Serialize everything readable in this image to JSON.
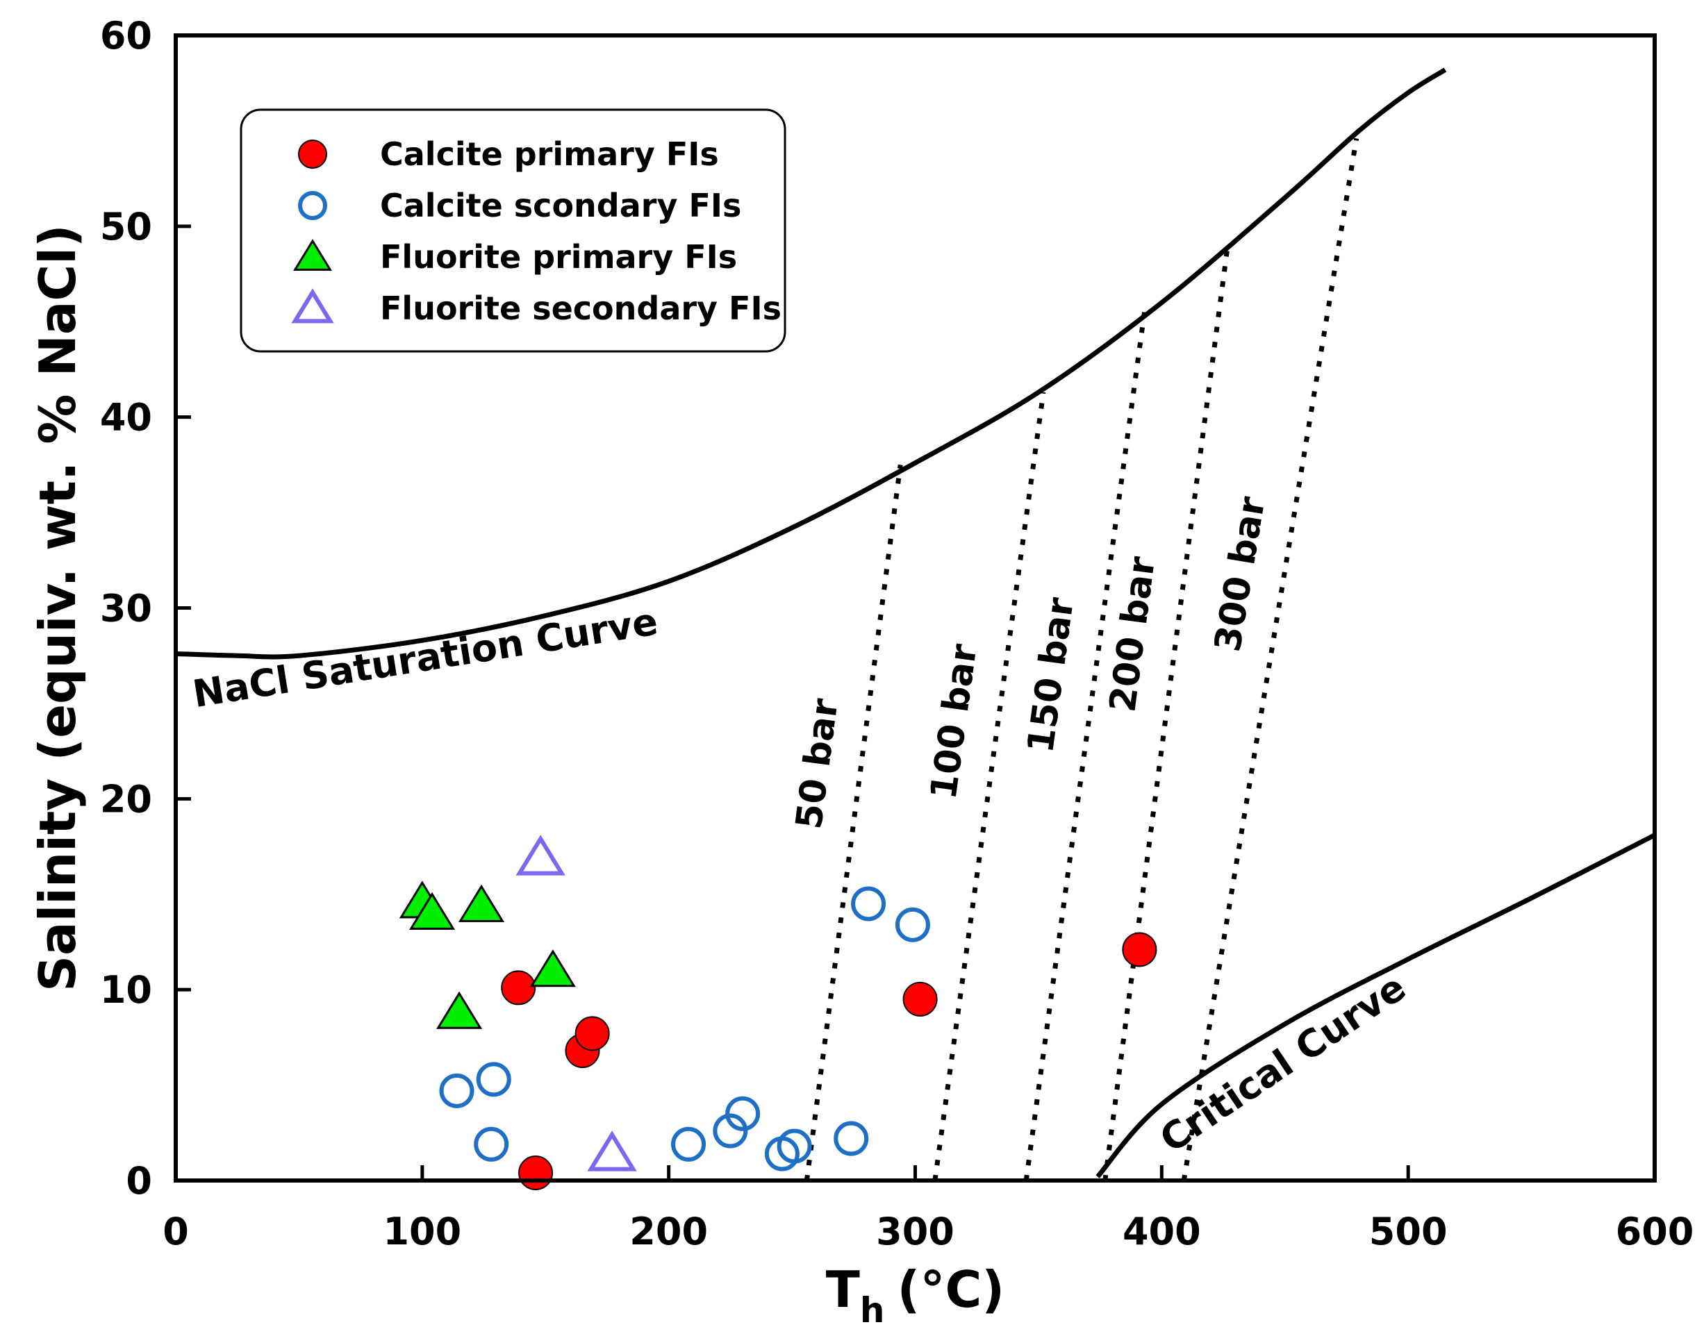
{
  "chart_data": {
    "type": "scatter",
    "title": "",
    "xlabel": "T",
    "xlabel_subscript": "h",
    "xlabel_unit": "(°C)",
    "ylabel": "Salinity (equiv. wt. % NaCl)",
    "xlim": [
      0,
      600
    ],
    "ylim": [
      0,
      60
    ],
    "xticks": [
      "0",
      "100",
      "200",
      "300",
      "400",
      "500",
      "600"
    ],
    "yticks": [
      "0",
      "10",
      "20",
      "30",
      "40",
      "50",
      "60"
    ],
    "legend_position": "top-left",
    "series": [
      {
        "name": "Calcite primary FIs",
        "marker": "circle-filled",
        "color": "#ff0000",
        "points": [
          [
            139,
            10.1
          ],
          [
            146,
            0.4
          ],
          [
            165,
            6.8
          ],
          [
            169,
            7.7
          ],
          [
            302,
            9.5
          ],
          [
            391,
            12.1
          ]
        ]
      },
      {
        "name": "Calcite scondary FIs",
        "marker": "circle-open",
        "color": "#1f6fc5",
        "points": [
          [
            114,
            4.7
          ],
          [
            128,
            1.9
          ],
          [
            129,
            5.3
          ],
          [
            208,
            1.9
          ],
          [
            225,
            2.6
          ],
          [
            230,
            3.5
          ],
          [
            246,
            1.4
          ],
          [
            251,
            1.8
          ],
          [
            274,
            2.2
          ],
          [
            281,
            14.5
          ],
          [
            299,
            13.4
          ]
        ]
      },
      {
        "name": "Fluorite primary FIs",
        "marker": "triangle-filled",
        "color": "#00ee00",
        "points": [
          [
            100,
            14.6
          ],
          [
            104,
            14.0
          ],
          [
            124,
            14.4
          ],
          [
            115,
            8.8
          ],
          [
            153,
            11.0
          ]
        ]
      },
      {
        "name": "Fluorite secondary FIs",
        "marker": "triangle-open",
        "color": "#7b68ee",
        "points": [
          [
            148,
            16.9
          ],
          [
            177,
            1.4
          ]
        ]
      }
    ],
    "curves": [
      {
        "name": "NaCl Saturation Curve",
        "style": "solid",
        "points": [
          [
            0,
            27.6
          ],
          [
            25,
            27.5
          ],
          [
            50,
            27.5
          ],
          [
            100,
            28.3
          ],
          [
            150,
            29.6
          ],
          [
            200,
            31.4
          ],
          [
            250,
            34.2
          ],
          [
            300,
            37.6
          ],
          [
            350,
            41.3
          ],
          [
            400,
            46.0
          ],
          [
            450,
            51.5
          ],
          [
            480,
            55.0
          ],
          [
            500,
            57.0
          ],
          [
            515,
            58.2
          ]
        ]
      },
      {
        "name": "Critical Curve",
        "style": "solid",
        "points": [
          [
            374,
            0.2
          ],
          [
            400,
            4.0
          ],
          [
            450,
            8.2
          ],
          [
            500,
            11.6
          ],
          [
            550,
            14.8
          ],
          [
            600,
            18.1
          ]
        ]
      }
    ],
    "isobars": [
      {
        "label": "50 bar",
        "from": [
          256,
          0
        ],
        "to": [
          294,
          37.5
        ]
      },
      {
        "label": "100 bar",
        "from": [
          308,
          0
        ],
        "to": [
          352,
          41.3
        ]
      },
      {
        "label": "150 bar",
        "from": [
          345,
          0
        ],
        "to": [
          393,
          45.5
        ]
      },
      {
        "label": "200 bar",
        "from": [
          377,
          0
        ],
        "to": [
          427,
          49.2
        ]
      },
      {
        "label": "300 bar",
        "from": [
          409,
          0
        ],
        "to": [
          479,
          54.6
        ]
      }
    ],
    "annotations": [
      "NaCl Saturation Curve",
      "Critical Curve",
      "50 bar",
      "100 bar",
      "150 bar",
      "200 bar",
      "300 bar"
    ]
  }
}
